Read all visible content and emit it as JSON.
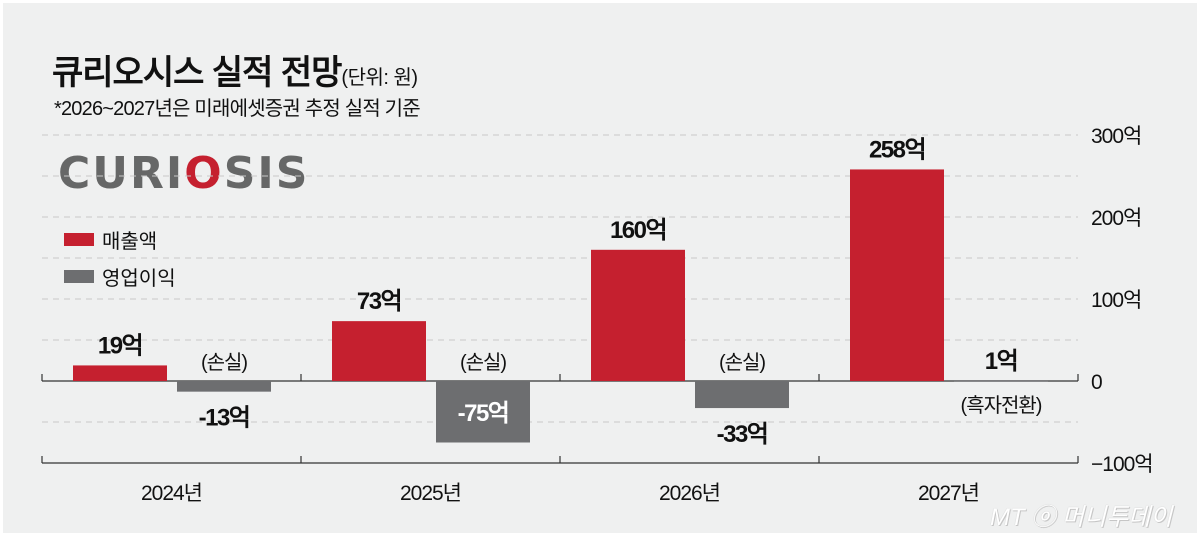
{
  "title": "큐리오시스 실적 전망",
  "unit_note": "(단위: 원)",
  "subtitle": "*2026~2027년은 미래에셋증권 추정 실적 기준",
  "logo_text": "CURIOSIS",
  "watermark": "MT ⓞ 머니투데이",
  "colors": {
    "revenue": "#c5202f",
    "operating_income": "#6d6e70",
    "background": "#eff0f0"
  },
  "chart_data": {
    "type": "bar",
    "title": "큐리오시스 실적 전망",
    "categories": [
      "2024년",
      "2025년",
      "2026년",
      "2027년"
    ],
    "series": [
      {
        "name": "매출액",
        "values": [
          19,
          73,
          160,
          258
        ],
        "labels": [
          "19억",
          "73억",
          "160억",
          "258억"
        ]
      },
      {
        "name": "영업이익",
        "values": [
          -13,
          -75,
          -33,
          1
        ],
        "labels": [
          "-13억",
          "-75억",
          "-33억",
          "1억"
        ]
      }
    ],
    "annotations": [
      "(손실)",
      "(손실)",
      "(손실)",
      "(흑자전환)"
    ],
    "yticks": [
      300,
      200,
      100,
      0,
      -100
    ],
    "ytick_labels": [
      "300억",
      "200억",
      "100억",
      "0",
      "−100억"
    ],
    "ylim": [
      -100,
      300
    ],
    "grid_step": 50,
    "grid": true,
    "legend": "left",
    "xlabel": "",
    "ylabel": ""
  }
}
